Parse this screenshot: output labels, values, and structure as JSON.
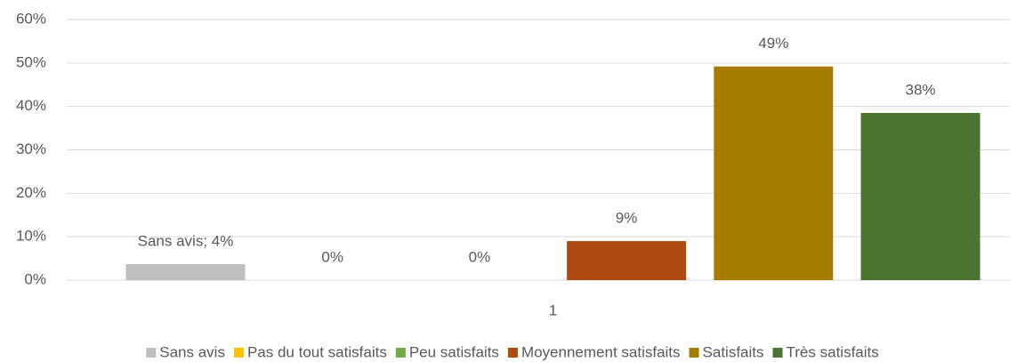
{
  "chart_data": {
    "type": "bar",
    "categories": [
      "1"
    ],
    "series": [
      {
        "name": "Sans avis",
        "color": "#bfbfbf",
        "values": [
          3.7
        ],
        "value_labels": [
          "Sans avis; 4%"
        ]
      },
      {
        "name": "Pas du tout satisfaits",
        "color": "#ffc000",
        "values": [
          0
        ],
        "value_labels": [
          "0%"
        ]
      },
      {
        "name": "Peu satisfaits",
        "color": "#70ad47",
        "values": [
          0
        ],
        "value_labels": [
          "0%"
        ]
      },
      {
        "name": "Moyennement satisfaits",
        "color": "#b04a10",
        "values": [
          9
        ],
        "value_labels": [
          "9%"
        ]
      },
      {
        "name": "Satisfaits",
        "color": "#a67c00",
        "values": [
          49.2
        ],
        "value_labels": [
          "49%"
        ]
      },
      {
        "name": "Très satisfaits",
        "color": "#4a7430",
        "values": [
          38.5
        ],
        "value_labels": [
          "38%"
        ]
      }
    ],
    "ylim": [
      0,
      60
    ],
    "yticks": [
      {
        "value": 0,
        "label": "0%"
      },
      {
        "value": 10,
        "label": "10%"
      },
      {
        "value": 20,
        "label": "20%"
      },
      {
        "value": 30,
        "label": "30%"
      },
      {
        "value": 40,
        "label": "40%"
      },
      {
        "value": 50,
        "label": "50%"
      },
      {
        "value": 60,
        "label": "60%"
      }
    ],
    "grid": true,
    "legend": "bottom"
  }
}
